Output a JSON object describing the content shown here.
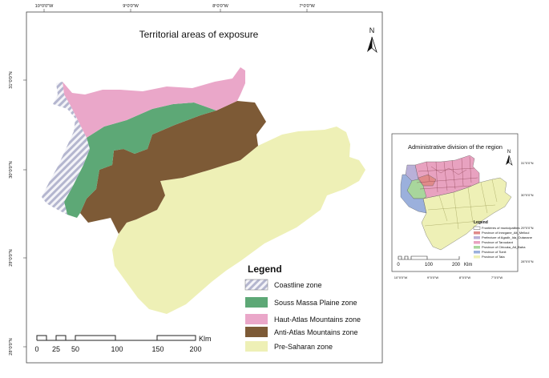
{
  "main_map": {
    "title": "Territorial areas of exposure",
    "north_label": "N",
    "lon_ticks": [
      "10°0'0\"W",
      "9°0'0\"W",
      "8°0'0\"W",
      "7°0'0\"W"
    ],
    "lat_ticks": [
      "31°0'0\"N",
      "30°0'0\"N",
      "29°0'0\"N",
      "28°0'0\"N"
    ],
    "legend": {
      "title": "Legend",
      "items": [
        {
          "label": "Coastline zone",
          "color": "#c9cbe0"
        },
        {
          "label": "Souss Massa Plaine zone",
          "color": "#5da876"
        },
        {
          "label": "Haut-Atlas Mountains zone",
          "color": "#eaa7c9"
        },
        {
          "label": "Anti-Atlas Mountains zone",
          "color": "#7d5a36"
        },
        {
          "label": "Pre-Saharan zone",
          "color": "#eef0b6"
        }
      ]
    },
    "scale_bar": {
      "unit": "Klm",
      "labels": [
        "0",
        "25",
        "50",
        "100",
        "150",
        "200"
      ]
    }
  },
  "inset_map": {
    "title": "Administrative division of the region",
    "north_label": "N",
    "lon_ticks": [
      "10°0'0\"W",
      "9°0'0\"W",
      "8°0'0\"W",
      "7°0'0\"W"
    ],
    "lat_ticks": [
      "31°0'0\"N",
      "30°0'0\"N",
      "29°0'0\"N",
      "28°0'0\"N"
    ],
    "legend": {
      "title": "Legend",
      "items": [
        {
          "label": "Frontières of municipalities",
          "color": "#ffffff"
        },
        {
          "label": "Province of Inezgane_Ait_Melloul",
          "color": "#e08a8a"
        },
        {
          "label": "Prefecture of Agadir_Ida_Outanane",
          "color": "#b9b0d8"
        },
        {
          "label": "Province of Taroudant",
          "color": "#e8a2c0"
        },
        {
          "label": "Province of Chtouka_Ait_Baha",
          "color": "#a8d69c"
        },
        {
          "label": "Province of Tiznit",
          "color": "#9bb0dc"
        },
        {
          "label": "Province of Tata",
          "color": "#eef0b6"
        }
      ]
    },
    "scale_bar": {
      "unit": "Klm",
      "labels": [
        "0",
        "100",
        "200"
      ]
    }
  }
}
